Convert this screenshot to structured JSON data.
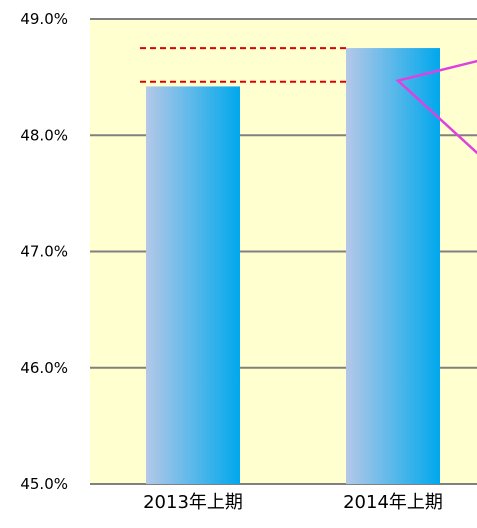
{
  "chart_data": {
    "type": "bar",
    "categories": [
      "2013年上期",
      "2014年上期"
    ],
    "series": [
      {
        "values": [
          48.42,
          48.75
        ]
      }
    ],
    "ylim": [
      45.0,
      49.0
    ],
    "yticks": [
      49.0,
      48.0,
      47.0,
      46.0,
      45.0
    ],
    "ytick_labels": [
      "49.0%",
      "48.0%",
      "47.0%",
      "46.0%",
      "45.0%"
    ],
    "grid": true,
    "legend": "none",
    "colors": {
      "plot_background": "#FFFFD0",
      "bar_light": "#B4C8E8",
      "bar_dark": "#00A8EC",
      "gridline": "#808080",
      "reference_line": "#E00000",
      "callout_line": "#E040E0"
    }
  }
}
